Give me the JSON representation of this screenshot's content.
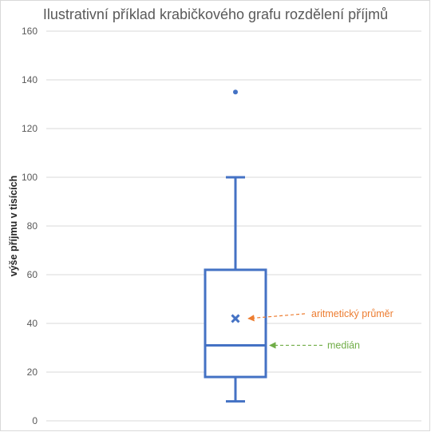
{
  "chart_data": {
    "type": "box",
    "title": "Ilustrativní příklad krabičkového grafu rozdělení příjmů",
    "xlabel": "",
    "ylabel": "výše příjmu v tisících",
    "ylim": [
      0,
      160
    ],
    "yticks": [
      0,
      20,
      40,
      60,
      80,
      100,
      120,
      140,
      160
    ],
    "grid": true,
    "box": {
      "min": 8,
      "q1": 18,
      "median": 31,
      "q3": 62,
      "max": 100,
      "mean": 42,
      "outliers": [
        135
      ]
    },
    "annotations": [
      {
        "text": "aritmetický průměr",
        "target": "mean",
        "color": "#ED7D31"
      },
      {
        "text": "medián",
        "target": "median",
        "color": "#70AD47"
      }
    ]
  },
  "colors": {
    "box": "#4472C4",
    "grid": "#d9d9d9",
    "axis_text": "#595959"
  }
}
